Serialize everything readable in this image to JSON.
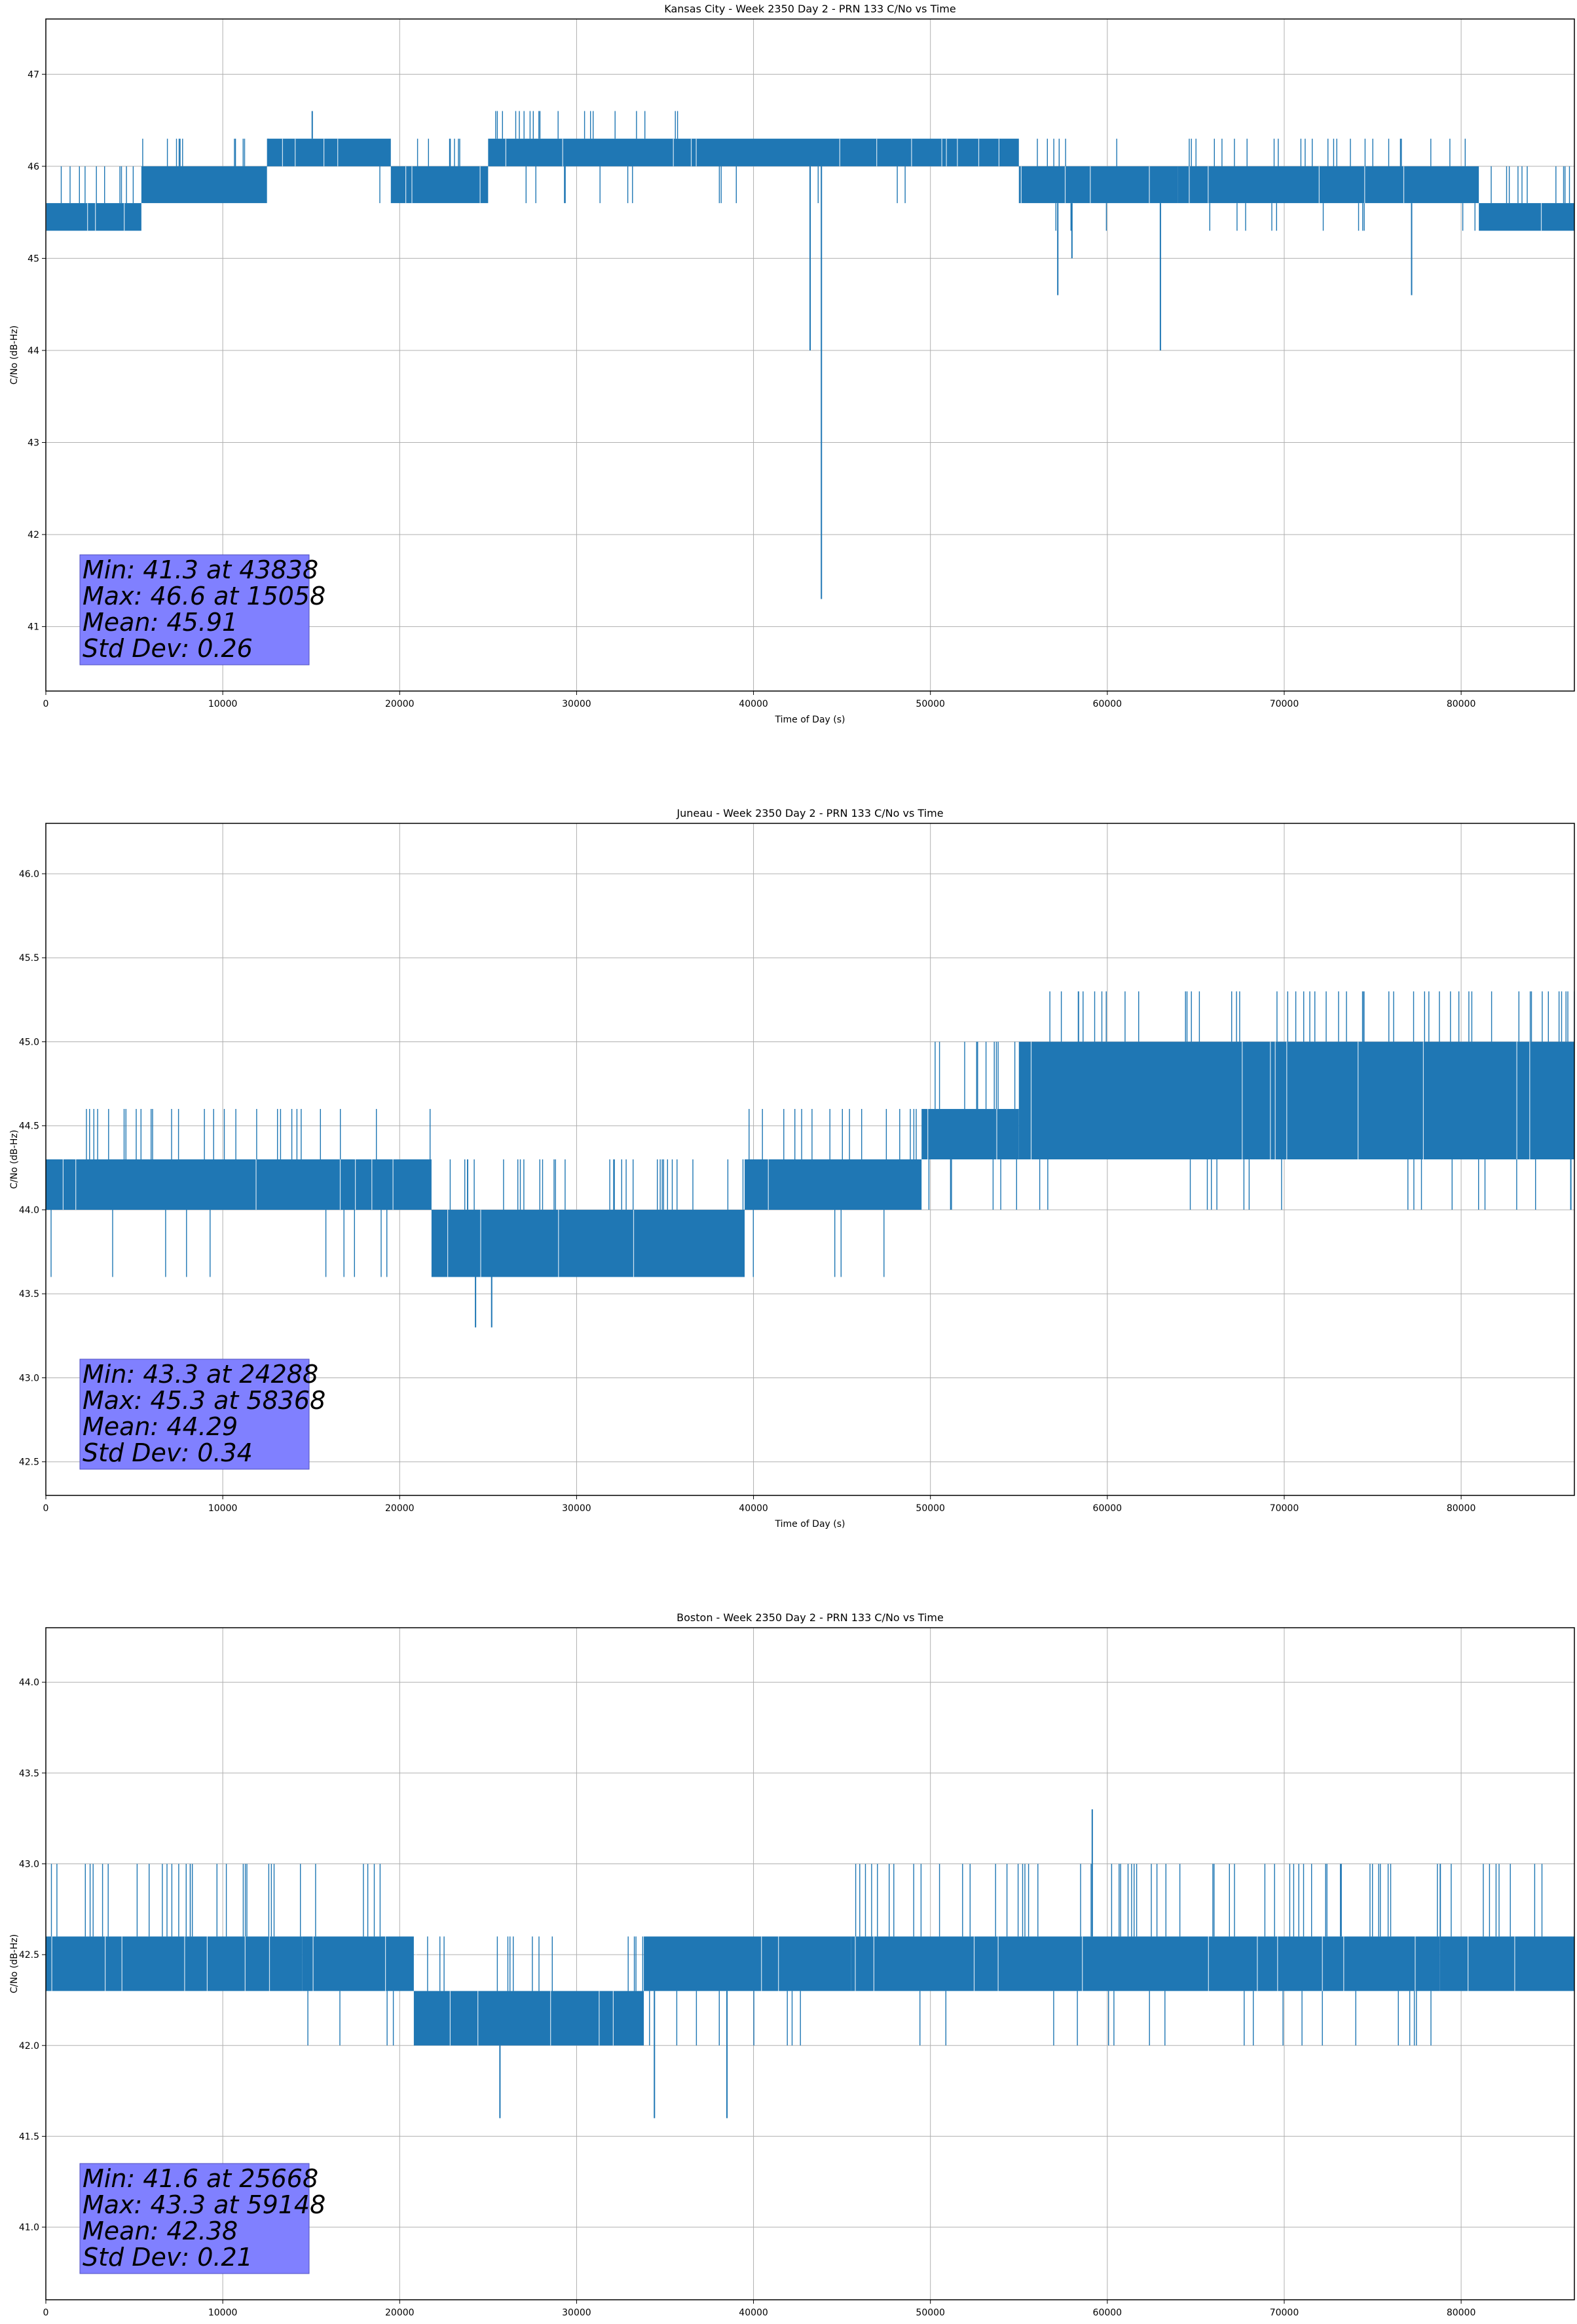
{
  "chart_data": [
    {
      "type": "line",
      "title": "Kansas City - Week 2350 Day 2 - PRN 133 C/No vs Time",
      "xlabel": "Time of Day (s)",
      "ylabel": "C/No (dB-Hz)",
      "xlim": [
        0,
        86400
      ],
      "ylim": [
        40.3,
        47.6
      ],
      "xticks": [
        0,
        10000,
        20000,
        30000,
        40000,
        50000,
        60000,
        70000,
        80000
      ],
      "yticks": [
        41,
        42,
        43,
        44,
        45,
        46,
        47
      ],
      "ytick_labels": [
        "41",
        "42",
        "43",
        "44",
        "45",
        "46",
        "47"
      ],
      "grid": true,
      "series_color": "#1f77b4",
      "quant_step": 0.3,
      "segments": [
        {
          "start": 0,
          "end": 5400,
          "lo": 45.3,
          "hi": 45.6,
          "up": 46.0,
          "down": 45.3,
          "spike_rate": 0.35
        },
        {
          "start": 5400,
          "end": 12500,
          "lo": 45.6,
          "hi": 46.0,
          "up": 46.3,
          "down": 45.6,
          "spike_rate": 0.3
        },
        {
          "start": 12500,
          "end": 19500,
          "lo": 46.0,
          "hi": 46.3,
          "up": 46.3,
          "down": 45.6,
          "spike_rate": 0.2
        },
        {
          "start": 19500,
          "end": 25000,
          "lo": 45.6,
          "hi": 46.0,
          "up": 46.3,
          "down": 45.6,
          "spike_rate": 0.25
        },
        {
          "start": 25000,
          "end": 36000,
          "lo": 46.0,
          "hi": 46.3,
          "up": 46.6,
          "down": 45.6,
          "spike_rate": 0.35
        },
        {
          "start": 36000,
          "end": 55000,
          "lo": 46.0,
          "hi": 46.3,
          "up": 46.3,
          "down": 45.6,
          "spike_rate": 0.25
        },
        {
          "start": 55000,
          "end": 64000,
          "lo": 45.6,
          "hi": 46.0,
          "up": 46.3,
          "down": 45.3,
          "spike_rate": 0.25
        },
        {
          "start": 64000,
          "end": 81000,
          "lo": 45.6,
          "hi": 46.0,
          "up": 46.3,
          "down": 45.3,
          "spike_rate": 0.3
        },
        {
          "start": 81000,
          "end": 86400,
          "lo": 45.3,
          "hi": 45.6,
          "up": 46.0,
          "down": 45.3,
          "spike_rate": 0.35
        }
      ],
      "spikes": [
        {
          "x": 15058,
          "y": 46.6
        },
        {
          "x": 43200,
          "y": 44.0
        },
        {
          "x": 43838,
          "y": 41.3
        },
        {
          "x": 57200,
          "y": 44.6
        },
        {
          "x": 58000,
          "y": 45.0
        },
        {
          "x": 63000,
          "y": 44.0
        },
        {
          "x": 77200,
          "y": 44.6
        }
      ],
      "stats": {
        "min": "Min: 41.3 at 43838",
        "max": "Max: 46.6 at 15058",
        "mean": "Mean: 45.91",
        "std": "Std Dev: 0.26"
      }
    },
    {
      "type": "line",
      "title": "Juneau - Week 2350 Day 2 - PRN 133 C/No vs Time",
      "xlabel": "Time of Day (s)",
      "ylabel": "C/No (dB-Hz)",
      "xlim": [
        0,
        86400
      ],
      "ylim": [
        42.3,
        46.3
      ],
      "xticks": [
        0,
        10000,
        20000,
        30000,
        40000,
        50000,
        60000,
        70000,
        80000
      ],
      "yticks": [
        42.5,
        43.0,
        43.5,
        44.0,
        44.5,
        45.0,
        45.5,
        46.0
      ],
      "ytick_labels": [
        "42.5",
        "43.0",
        "43.5",
        "44.0",
        "44.5",
        "45.0",
        "45.5",
        "46.0"
      ],
      "grid": true,
      "series_color": "#1f77b4",
      "quant_step": 0.3,
      "segments": [
        {
          "start": 0,
          "end": 21800,
          "lo": 44.0,
          "hi": 44.3,
          "up": 44.6,
          "down": 43.6,
          "spike_rate": 0.3
        },
        {
          "start": 21800,
          "end": 39500,
          "lo": 43.6,
          "hi": 44.0,
          "up": 44.3,
          "down": 43.6,
          "spike_rate": 0.35
        },
        {
          "start": 39500,
          "end": 49500,
          "lo": 44.0,
          "hi": 44.3,
          "up": 44.6,
          "down": 43.6,
          "spike_rate": 0.3
        },
        {
          "start": 49500,
          "end": 55000,
          "lo": 44.3,
          "hi": 44.6,
          "up": 45.0,
          "down": 44.0,
          "spike_rate": 0.3
        },
        {
          "start": 55000,
          "end": 86400,
          "lo": 44.3,
          "hi": 45.0,
          "up": 45.3,
          "down": 44.0,
          "spike_rate": 0.35
        }
      ],
      "spikes": [
        {
          "x": 24288,
          "y": 43.3
        },
        {
          "x": 25200,
          "y": 43.3
        },
        {
          "x": 58368,
          "y": 45.3
        },
        {
          "x": 74500,
          "y": 45.3
        },
        {
          "x": 86200,
          "y": 44.0
        }
      ],
      "stats": {
        "min": "Min: 43.3 at 24288",
        "max": "Max: 45.3 at 58368",
        "mean": "Mean: 44.29",
        "std": "Std Dev: 0.34"
      }
    },
    {
      "type": "line",
      "title": "Boston - Week 2350 Day 2 - PRN 133 C/No vs Time",
      "xlabel": "Time of Day (s)",
      "ylabel": "C/No (dB-Hz)",
      "xlim": [
        0,
        86400
      ],
      "ylim": [
        40.6,
        44.3
      ],
      "xticks": [
        0,
        10000,
        20000,
        30000,
        40000,
        50000,
        60000,
        70000,
        80000
      ],
      "yticks": [
        41.0,
        41.5,
        42.0,
        42.5,
        43.0,
        43.5,
        44.0
      ],
      "ytick_labels": [
        "41.0",
        "41.5",
        "42.0",
        "42.5",
        "43.0",
        "43.5",
        "44.0"
      ],
      "grid": true,
      "series_color": "#1f77b4",
      "quant_step": 0.3,
      "segments": [
        {
          "start": 0,
          "end": 14500,
          "lo": 42.3,
          "hi": 42.6,
          "up": 43.0,
          "down": 42.3,
          "spike_rate": 0.45
        },
        {
          "start": 14500,
          "end": 20800,
          "lo": 42.3,
          "hi": 42.6,
          "up": 43.0,
          "down": 42.0,
          "spike_rate": 0.25
        },
        {
          "start": 20800,
          "end": 33800,
          "lo": 42.0,
          "hi": 42.3,
          "up": 42.6,
          "down": 42.0,
          "spike_rate": 0.3
        },
        {
          "start": 33800,
          "end": 45500,
          "lo": 42.3,
          "hi": 42.6,
          "up": 42.6,
          "down": 42.0,
          "spike_rate": 0.3
        },
        {
          "start": 45500,
          "end": 78800,
          "lo": 42.3,
          "hi": 42.6,
          "up": 43.0,
          "down": 42.0,
          "spike_rate": 0.3
        },
        {
          "start": 78800,
          "end": 86400,
          "lo": 42.3,
          "hi": 42.6,
          "up": 43.0,
          "down": 42.3,
          "spike_rate": 0.15
        }
      ],
      "spikes": [
        {
          "x": 25668,
          "y": 41.6
        },
        {
          "x": 34400,
          "y": 41.6
        },
        {
          "x": 38500,
          "y": 41.6
        },
        {
          "x": 59148,
          "y": 43.3
        }
      ],
      "stats": {
        "min": "Min: 41.6 at 25668",
        "max": "Max: 43.3 at 59148",
        "mean": "Mean: 42.38",
        "std": "Std Dev: 0.21"
      }
    }
  ]
}
